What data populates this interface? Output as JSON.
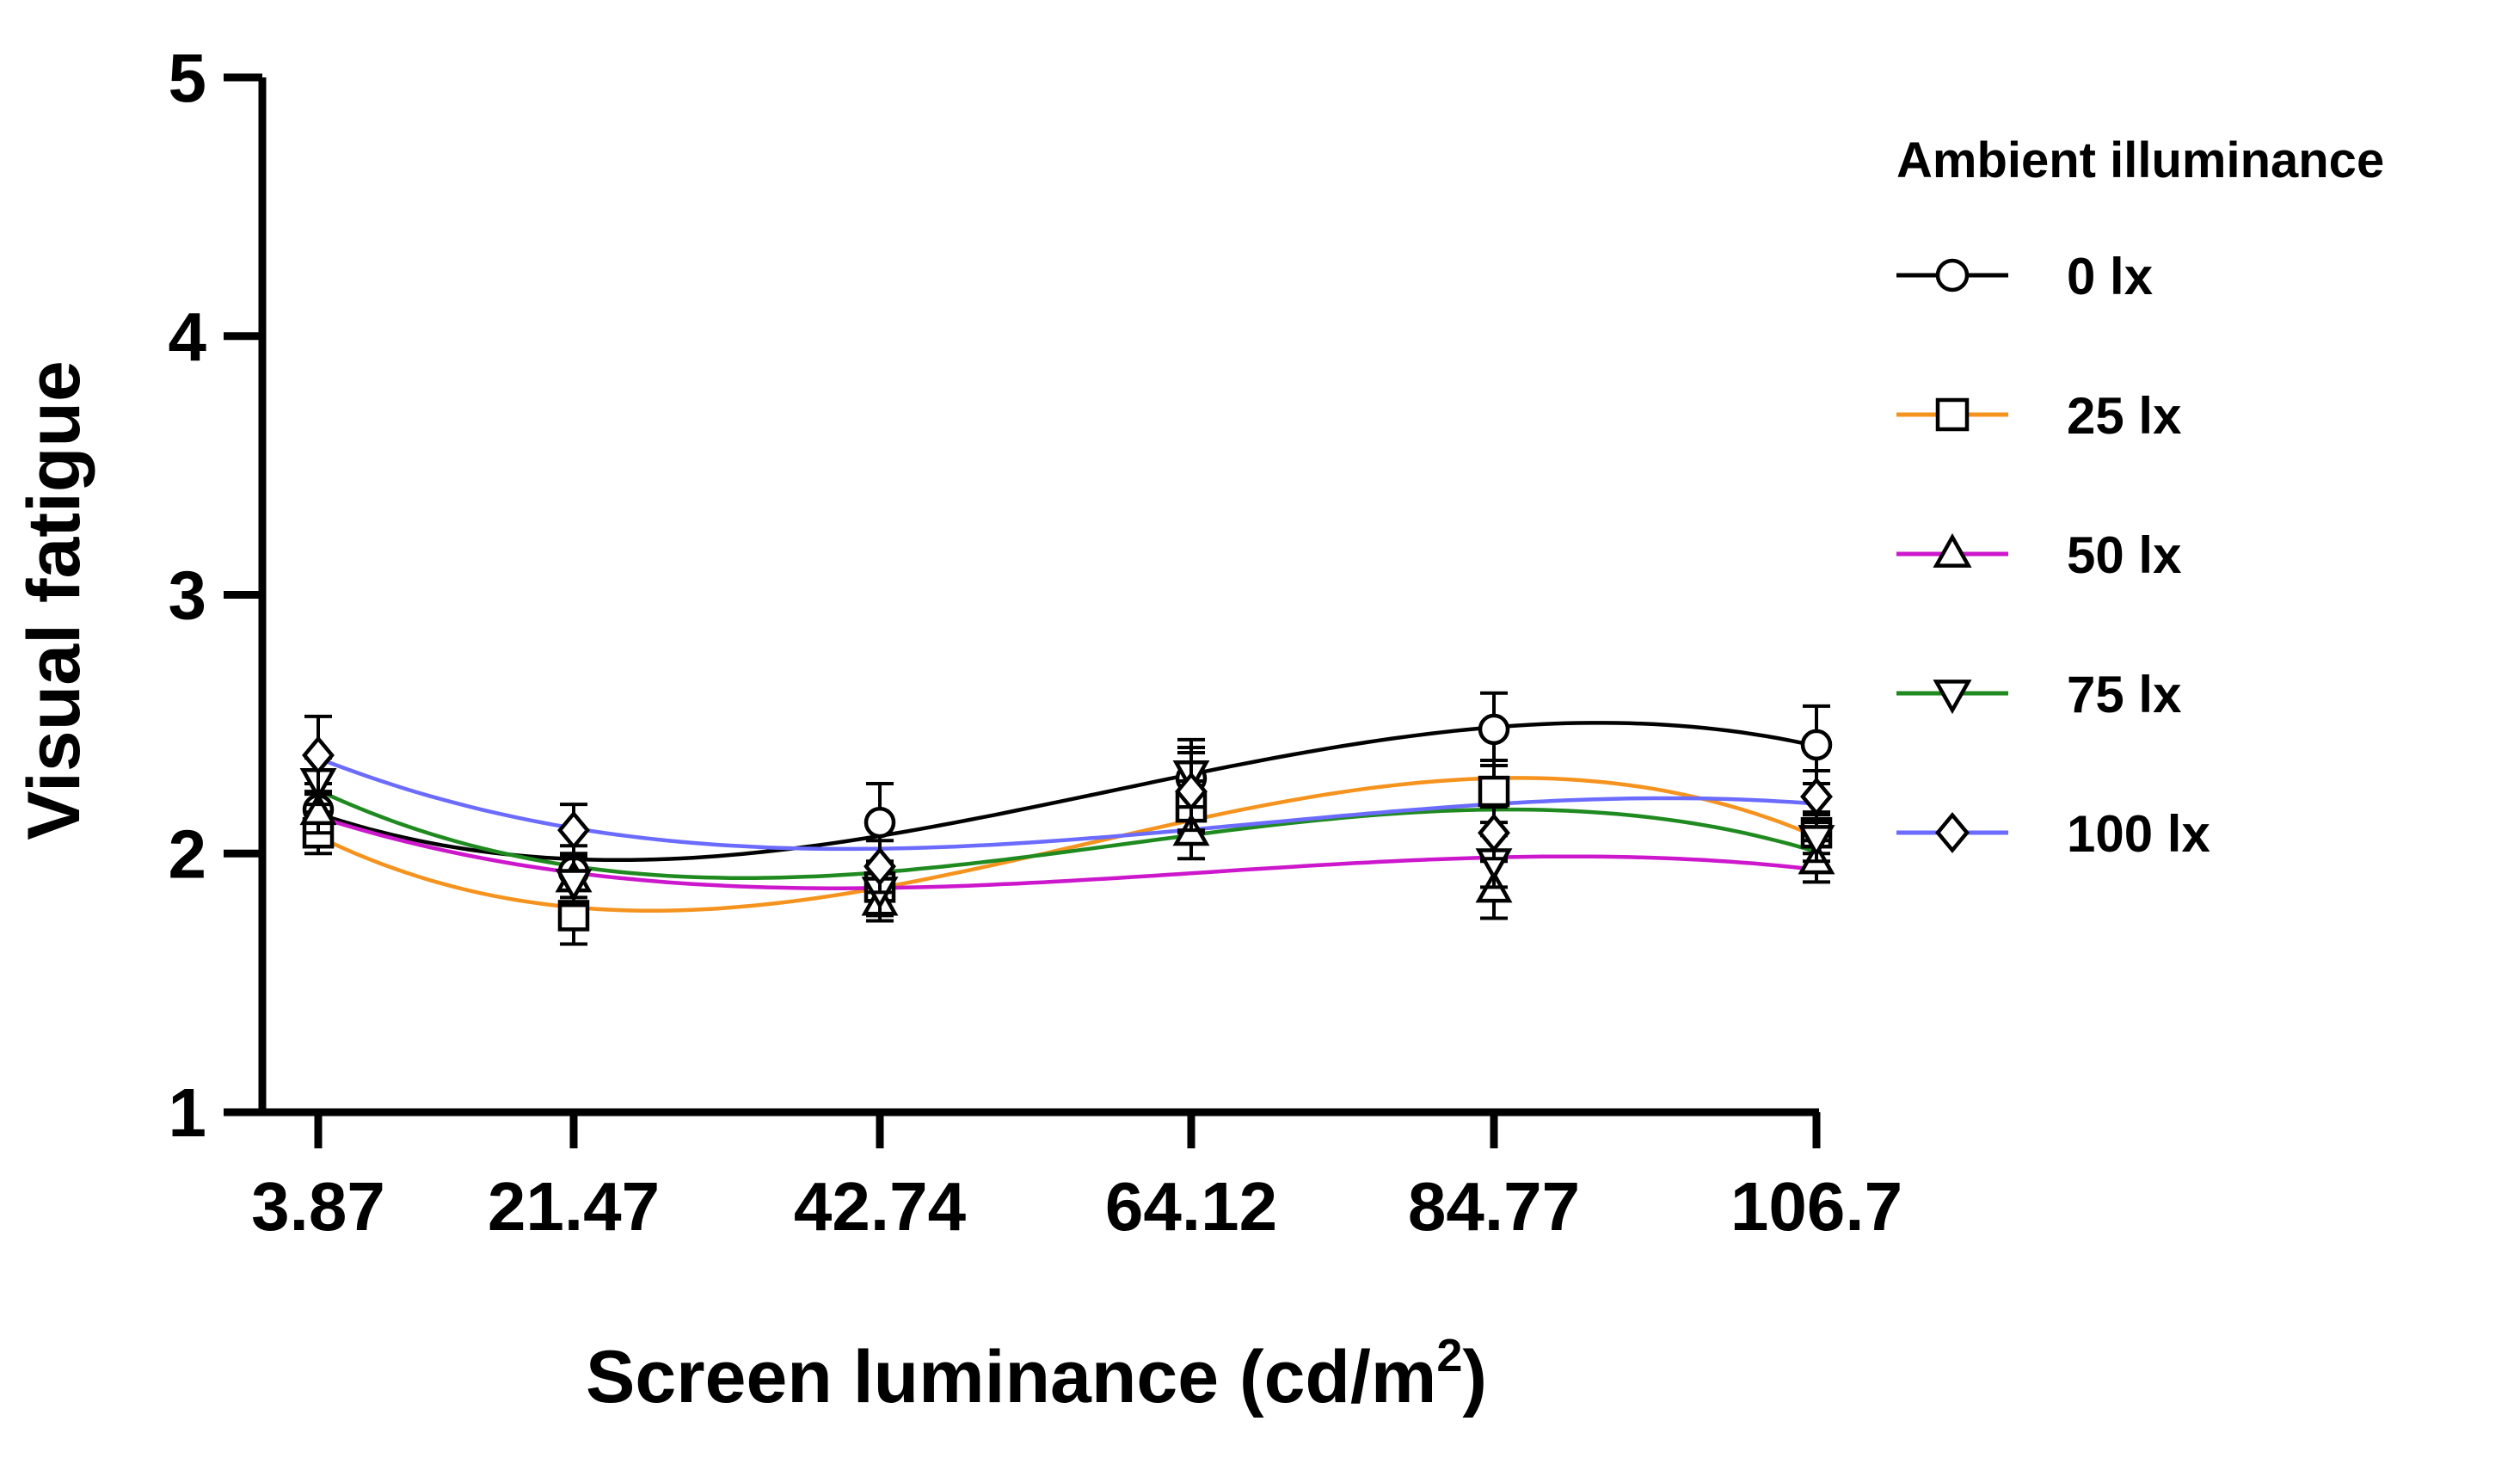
{
  "chart_data": {
    "type": "line",
    "title": "",
    "xlabel": "Screen luminance (cd/m",
    "xlabel_sup": "2",
    "xlabel_end": ")",
    "ylabel": "Visual fatigue",
    "categories": [
      "3.87",
      "21.47",
      "42.74",
      "64.12",
      "84.77",
      "106.7"
    ],
    "x": [
      3.87,
      21.47,
      42.74,
      64.12,
      84.77,
      106.7
    ],
    "ylim": [
      1,
      5
    ],
    "yticks": [
      "1",
      "2",
      "3",
      "4",
      "5"
    ],
    "grid": false,
    "legend_position": "right",
    "legend_title": "Ambient illuminance",
    "series": [
      {
        "name": "0 lx",
        "marker": "circle",
        "color": "#000000",
        "values": [
          2.17,
          1.93,
          2.12,
          2.29,
          2.48,
          2.42
        ],
        "errors": [
          0.1,
          0.1,
          0.15,
          0.12,
          0.14,
          0.15
        ]
      },
      {
        "name": "25 lx",
        "marker": "square",
        "color": "#f5931e",
        "values": [
          2.08,
          1.76,
          1.87,
          2.18,
          2.24,
          2.08
        ],
        "errors": [
          0.08,
          0.11,
          0.09,
          0.1,
          0.12,
          0.08
        ]
      },
      {
        "name": "50 lx",
        "marker": "triangle-up",
        "color": "#cc17cc",
        "values": [
          2.16,
          1.9,
          1.81,
          2.08,
          1.86,
          1.97
        ],
        "errors": [
          0.08,
          0.1,
          0.07,
          0.1,
          0.11,
          0.08
        ]
      },
      {
        "name": "75 lx",
        "marker": "triangle-down",
        "color": "#1f8a1f",
        "values": [
          2.28,
          1.89,
          1.86,
          2.31,
          1.97,
          2.06
        ],
        "errors": [
          0.09,
          0.09,
          0.1,
          0.13,
          0.1,
          0.09
        ]
      },
      {
        "name": "100 lx",
        "marker": "diamond",
        "color": "#6b6bff",
        "values": [
          2.38,
          2.09,
          1.95,
          2.24,
          2.08,
          2.22
        ],
        "errors": [
          0.15,
          0.1,
          0.1,
          0.15,
          0.1,
          0.1
        ]
      }
    ]
  }
}
